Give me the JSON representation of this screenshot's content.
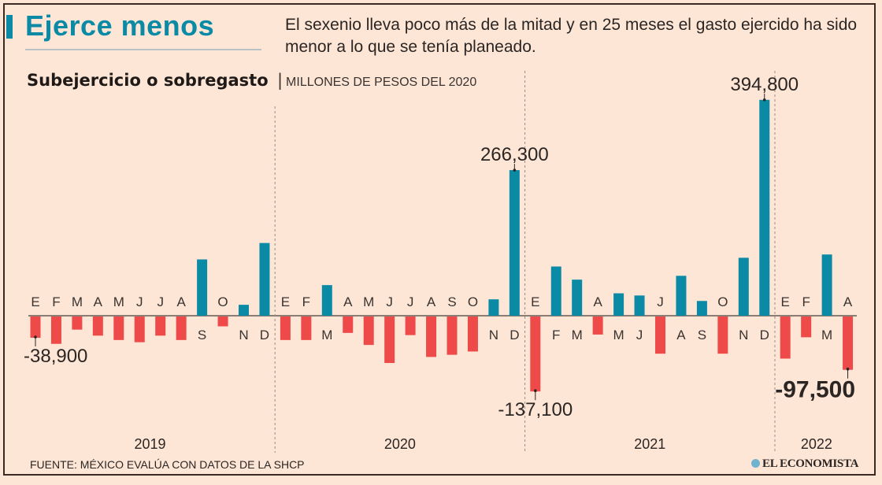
{
  "header": {
    "title": "Ejerce menos",
    "intro": "El sexenio lleva poco más de la mitad y en 25 meses el gasto ejercido ha sido menor a lo que se tenía planeado.",
    "subtitle": "Subejercicio o sobregasto",
    "separator": "|",
    "units": "MILLONES DE PESOS DEL 2020"
  },
  "footer": {
    "source": "FUENTE: MÉXICO EVALÚA CON DATOS DE LA SHCP",
    "logo": "EL ECONOMISTA"
  },
  "colors": {
    "positive": "#0b8aa6",
    "negative": "#ef4a4a",
    "background": "#fde6d6",
    "text": "#2b2523"
  },
  "chart_data": {
    "type": "bar",
    "title": "Subejercicio o sobregasto",
    "ylabel": "MILLONES DE PESOS DEL 2020",
    "years": [
      {
        "label": "2019",
        "months": [
          "E",
          "F",
          "M",
          "A",
          "M",
          "J",
          "J",
          "A",
          "S",
          "O",
          "N",
          "D"
        ],
        "values": [
          -38900,
          -50000,
          -24000,
          -35000,
          -43000,
          -47000,
          -35000,
          -43000,
          103000,
          -18000,
          20000,
          133000
        ]
      },
      {
        "label": "2020",
        "months": [
          "E",
          "F",
          "M",
          "A",
          "M",
          "J",
          "J",
          "A",
          "S",
          "O",
          "N",
          "D"
        ],
        "values": [
          -43000,
          -43000,
          56000,
          -30000,
          -52000,
          -85000,
          -34000,
          -74000,
          -70000,
          -64000,
          30000,
          266300
        ]
      },
      {
        "label": "2021",
        "months": [
          "E",
          "F",
          "M",
          "A",
          "M",
          "J",
          "J",
          "A",
          "S",
          "O",
          "N",
          "D"
        ],
        "values": [
          -137100,
          90000,
          66000,
          -33000,
          41000,
          37000,
          -68000,
          73000,
          27000,
          -68000,
          106000,
          394800
        ]
      },
      {
        "label": "2022",
        "months": [
          "E",
          "F",
          "M",
          "A"
        ],
        "values": [
          -77000,
          -38000,
          112000,
          -97500
        ]
      }
    ],
    "annotations": [
      {
        "year": "2019",
        "month_index": 0,
        "text": "-38,900"
      },
      {
        "year": "2020",
        "month_index": 11,
        "text": "266,300"
      },
      {
        "year": "2021",
        "month_index": 0,
        "text": "-137,100"
      },
      {
        "year": "2021",
        "month_index": 11,
        "text": "394,800"
      },
      {
        "year": "2022",
        "month_index": 3,
        "text": "-97,500",
        "emphasis": true
      }
    ],
    "grid": false,
    "legend": "none"
  }
}
